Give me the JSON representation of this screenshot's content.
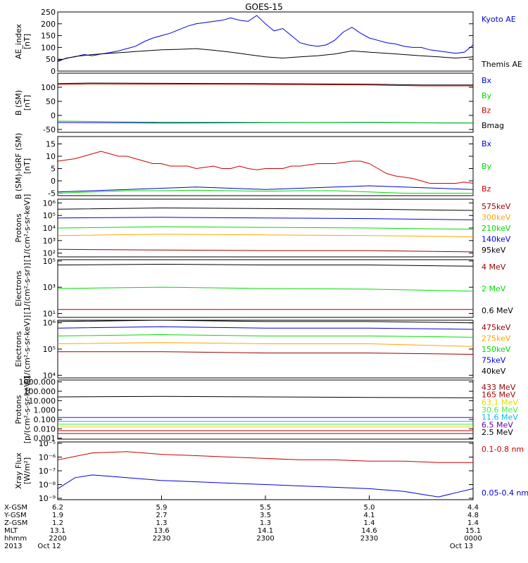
{
  "title": "GOES-15",
  "colors": {
    "black": "#000000",
    "blue": "#0000dd",
    "green": "#00dd00",
    "red": "#cc0000",
    "orange": "#ffa500",
    "yellow": "#dddd00",
    "lightgreen": "#44ee44",
    "cyan": "#00bbff",
    "darkred": "#990000",
    "purple": "#6600aa",
    "brown": "#aa0000"
  },
  "chart_data": [
    {
      "type": "line",
      "ylabel": [
        "AE_index",
        "[nT]"
      ],
      "ylim": [
        0,
        250
      ],
      "yscale": "linear",
      "yticks": [
        0,
        50,
        100,
        150,
        200,
        250
      ],
      "ytick_labels": [
        "0",
        "50",
        "100",
        "150",
        "200",
        "250"
      ],
      "series": [
        {
          "name": "Kyoto AE",
          "color": "blue",
          "x": [
            0,
            5,
            10,
            15,
            20,
            25,
            30,
            35,
            40,
            45,
            50,
            55,
            60,
            65,
            70,
            75,
            80,
            85,
            90,
            95,
            100,
            105,
            110,
            115,
            120,
            125,
            130,
            135,
            140,
            145,
            150,
            155,
            160,
            165,
            170,
            175,
            180,
            185,
            190,
            195,
            200,
            205,
            210,
            215,
            220,
            225,
            230,
            235,
            240
          ],
          "y": [
            40,
            55,
            60,
            70,
            65,
            72,
            78,
            85,
            95,
            105,
            125,
            140,
            150,
            160,
            175,
            190,
            200,
            205,
            210,
            215,
            225,
            215,
            210,
            235,
            200,
            170,
            180,
            150,
            120,
            110,
            105,
            110,
            130,
            165,
            185,
            160,
            140,
            130,
            120,
            115,
            105,
            100,
            100,
            90,
            85,
            80,
            75,
            80,
            110
          ]
        },
        {
          "name": "Themis AE",
          "color": "black",
          "x": [
            0,
            10,
            20,
            30,
            40,
            50,
            60,
            70,
            80,
            90,
            100,
            110,
            120,
            130,
            140,
            150,
            160,
            170,
            180,
            190,
            200,
            210,
            220,
            230,
            240
          ],
          "y": [
            45,
            62,
            70,
            75,
            80,
            85,
            90,
            92,
            95,
            88,
            80,
            70,
            60,
            55,
            60,
            65,
            72,
            85,
            80,
            75,
            70,
            65,
            60,
            55,
            60
          ]
        }
      ]
    },
    {
      "type": "line",
      "ylabel": [
        "B (SM)",
        "[nT]"
      ],
      "ylim": [
        -60,
        150
      ],
      "yscale": "linear",
      "yticks": [
        -50,
        0,
        50,
        100
      ],
      "ytick_labels": [
        "-50",
        "0",
        "50",
        "100"
      ],
      "series": [
        {
          "name": "Bx",
          "color": "blue",
          "x": [
            0,
            60,
            120,
            180,
            240
          ],
          "y": [
            -25,
            -27,
            -26,
            -25,
            -27
          ]
        },
        {
          "name": "By",
          "color": "green",
          "x": [
            0,
            30,
            60,
            120,
            180,
            240
          ],
          "y": [
            -20,
            -22,
            -24,
            -25,
            -26,
            -27
          ]
        },
        {
          "name": "Bz",
          "color": "red",
          "x": [
            0,
            20,
            60,
            120,
            180,
            210,
            240
          ],
          "y": [
            110,
            112,
            111,
            110,
            108,
            105,
            105
          ]
        },
        {
          "name": "Bmag",
          "color": "black",
          "x": [
            0,
            20,
            60,
            120,
            180,
            210,
            240
          ],
          "y": [
            113,
            115,
            114,
            113,
            111,
            108,
            108
          ]
        }
      ]
    },
    {
      "type": "line",
      "ylabel": [
        "B (SM)-IGRF (SM)",
        "[nT]"
      ],
      "ylim": [
        -6,
        18
      ],
      "yscale": "linear",
      "yticks": [
        -5,
        0,
        5,
        10,
        15
      ],
      "ytick_labels": [
        "-5",
        "0",
        "5",
        "10",
        "15"
      ],
      "series": [
        {
          "name": "Bx",
          "color": "blue",
          "x": [
            0,
            20,
            40,
            60,
            80,
            100,
            120,
            140,
            160,
            180,
            200,
            220,
            240
          ],
          "y": [
            -4.5,
            -4,
            -3.5,
            -3,
            -2.5,
            -3,
            -3.5,
            -3,
            -2.5,
            -2,
            -2.5,
            -3,
            -3.5
          ]
        },
        {
          "name": "By",
          "color": "green",
          "x": [
            0,
            20,
            40,
            60,
            80,
            100,
            120,
            140,
            160,
            180,
            200,
            220,
            240
          ],
          "y": [
            -5,
            -4.5,
            -4,
            -4,
            -3.8,
            -4,
            -4.2,
            -4,
            -4,
            -4.5,
            -5,
            -5,
            -5
          ]
        },
        {
          "name": "Bz",
          "color": "red",
          "x": [
            0,
            5,
            10,
            15,
            20,
            25,
            30,
            35,
            40,
            45,
            50,
            55,
            60,
            65,
            70,
            75,
            80,
            85,
            90,
            95,
            100,
            105,
            110,
            115,
            120,
            125,
            130,
            135,
            140,
            145,
            150,
            155,
            160,
            165,
            170,
            175,
            180,
            185,
            190,
            195,
            200,
            205,
            210,
            215,
            220,
            225,
            230,
            235,
            240
          ],
          "y": [
            8,
            8.5,
            9,
            10,
            11,
            12,
            11,
            10,
            10,
            9,
            8,
            7,
            7,
            6,
            6,
            6,
            5,
            5.5,
            6,
            5,
            5,
            6,
            5,
            4.5,
            5,
            5,
            5,
            6,
            6,
            6.5,
            7,
            7,
            7,
            7.5,
            8,
            8,
            7,
            5,
            3,
            2,
            1.5,
            1,
            0,
            -1,
            -1,
            -1,
            -1,
            -0.5,
            -1
          ]
        }
      ]
    },
    {
      "type": "line",
      "ylabel": [
        "Protons",
        "[1/(cm²-s-sr-keV)]"
      ],
      "ylim_log": [
        1.7,
        6.3
      ],
      "yscale": "log",
      "yticks_log": [
        2,
        3,
        4,
        5,
        6
      ],
      "ytick_labels": [
        "10²",
        "10³",
        "10⁴",
        "10⁵",
        "10⁶"
      ],
      "series": [
        {
          "name": "575keV",
          "color": "darkred",
          "x": [
            0,
            60,
            120,
            180,
            240
          ],
          "log_y": [
            2.3,
            2.25,
            2.2,
            2.2,
            2.1
          ]
        },
        {
          "name": "300keV",
          "color": "orange",
          "x": [
            0,
            60,
            120,
            180,
            240
          ],
          "log_y": [
            3.4,
            3.5,
            3.45,
            3.4,
            3.3
          ]
        },
        {
          "name": "210keV",
          "color": "green",
          "x": [
            0,
            60,
            120,
            180,
            240
          ],
          "log_y": [
            4.0,
            4.1,
            4.05,
            4.0,
            3.9
          ]
        },
        {
          "name": "140keV",
          "color": "blue",
          "x": [
            0,
            60,
            120,
            180,
            240
          ],
          "log_y": [
            4.8,
            4.85,
            4.8,
            4.75,
            4.65
          ]
        },
        {
          "name": "95keV",
          "color": "black",
          "x": [
            0,
            60,
            120,
            180,
            240
          ],
          "log_y": [
            5.5,
            5.6,
            5.55,
            5.5,
            5.4
          ]
        }
      ]
    },
    {
      "type": "line",
      "ylabel": [
        "Electrons",
        "[1/(cm²-s-sr)]"
      ],
      "ylim_log": [
        0.7,
        5.1
      ],
      "yscale": "log",
      "yticks_log": [
        1,
        3,
        5
      ],
      "ytick_labels": [
        "10¹",
        "10³",
        "10⁵"
      ],
      "series": [
        {
          "name": "4 MeV",
          "color": "darkred",
          "x": [
            0,
            60,
            120,
            180,
            240
          ],
          "log_y": [
            1.3,
            1.3,
            1.3,
            1.3,
            1.3
          ]
        },
        {
          "name": "2 MeV",
          "color": "green",
          "x": [
            0,
            60,
            120,
            180,
            240
          ],
          "log_y": [
            2.9,
            3.0,
            2.9,
            2.85,
            2.7
          ]
        },
        {
          "name": "0.6 MeV",
          "color": "black",
          "x": [
            0,
            60,
            120,
            180,
            240
          ],
          "log_y": [
            4.7,
            4.75,
            4.7,
            4.7,
            4.6
          ]
        }
      ]
    },
    {
      "type": "line",
      "ylabel": [
        "Electrons",
        "[1/(cm²-s-sr-keV)]"
      ],
      "ylim_log": [
        3.9,
        6.1
      ],
      "yscale": "log",
      "yticks_log": [
        4,
        5,
        6
      ],
      "ytick_labels": [
        "10⁴",
        "10⁵",
        "10⁶"
      ],
      "series": [
        {
          "name": "475keV",
          "color": "darkred",
          "x": [
            0,
            60,
            120,
            180,
            240
          ],
          "log_y": [
            4.9,
            4.9,
            4.85,
            4.85,
            4.8
          ]
        },
        {
          "name": "275keV",
          "color": "orange",
          "x": [
            0,
            60,
            120,
            180,
            240
          ],
          "log_y": [
            5.2,
            5.25,
            5.2,
            5.2,
            5.1
          ]
        },
        {
          "name": "150keV",
          "color": "green",
          "x": [
            0,
            60,
            120,
            180,
            240
          ],
          "log_y": [
            5.5,
            5.55,
            5.5,
            5.5,
            5.45
          ]
        },
        {
          "name": "75keV",
          "color": "blue",
          "x": [
            0,
            60,
            120,
            180,
            240
          ],
          "log_y": [
            5.8,
            5.85,
            5.8,
            5.8,
            5.75
          ]
        },
        {
          "name": "40keV",
          "color": "black",
          "x": [
            0,
            60,
            120,
            180,
            240
          ],
          "log_y": [
            6.05,
            6.1,
            6.05,
            6.05,
            6.0
          ]
        }
      ]
    },
    {
      "type": "line",
      "ylabel": [
        "Protons",
        "[p/(cm²-s-sr-keV)]"
      ],
      "ylim_log": [
        -3.1,
        3.2
      ],
      "yscale": "log",
      "yticks_log": [
        -3,
        -2,
        -1,
        0,
        1,
        2,
        3
      ],
      "ytick_labels": [
        "0.001",
        "0.010",
        "0.100",
        "1.000",
        "10.000",
        "100.000",
        "1000.000"
      ],
      "series": [
        {
          "name": "433 MeV",
          "color": "darkred",
          "x": [
            0,
            60,
            120,
            180,
            240
          ],
          "log_y": [
            -2.5,
            -2.5,
            -2.5,
            -2.5,
            -2.5
          ]
        },
        {
          "name": "165 MeV",
          "color": "brown",
          "x": [
            0,
            60,
            120,
            180,
            240
          ],
          "log_y": [
            -2.2,
            -2.2,
            -2.2,
            -2.2,
            -2.2
          ]
        },
        {
          "name": "63.1 MeV",
          "color": "yellow",
          "x": [
            0,
            60,
            120,
            180,
            240
          ],
          "log_y": [
            -1.8,
            -1.8,
            -1.8,
            -1.8,
            -1.8
          ]
        },
        {
          "name": "30.6 MeV",
          "color": "lightgreen",
          "x": [
            0,
            60,
            120,
            180,
            240
          ],
          "log_y": [
            -1.5,
            -1.5,
            -1.5,
            -1.5,
            -1.5
          ]
        },
        {
          "name": "11.6 MeV",
          "color": "cyan",
          "x": [
            0,
            60,
            120,
            180,
            240
          ],
          "log_y": [
            -1.2,
            -1.2,
            -1.2,
            -1.2,
            -1.2
          ]
        },
        {
          "name": "6.5 MeV",
          "color": "purple",
          "x": [
            0,
            60,
            120,
            180,
            240
          ],
          "log_y": [
            -0.8,
            -0.8,
            -0.8,
            -0.8,
            -0.8
          ]
        },
        {
          "name": "2.5 MeV",
          "color": "black",
          "x": [
            0,
            60,
            120,
            180,
            240
          ],
          "log_y": [
            1.4,
            1.45,
            1.4,
            1.35,
            1.3
          ]
        }
      ]
    },
    {
      "type": "line",
      "ylabel": [
        "Xray Flux",
        "[W/m²]"
      ],
      "ylim_log": [
        -9.1,
        -4.9
      ],
      "yscale": "log",
      "yticks_log": [
        -9,
        -8,
        -7,
        -6,
        -5
      ],
      "ytick_labels": [
        "10⁻⁹",
        "10⁻⁸",
        "10⁻⁷",
        "10⁻⁶",
        "10⁻⁵"
      ],
      "series": [
        {
          "name": "0.1-0.8 nm",
          "color": "red",
          "x": [
            0,
            20,
            40,
            60,
            80,
            100,
            120,
            140,
            160,
            180,
            200,
            220,
            240
          ],
          "log_y": [
            -6.2,
            -5.7,
            -5.6,
            -5.8,
            -5.9,
            -6.0,
            -6.1,
            -6.2,
            -6.2,
            -6.3,
            -6.3,
            -6.4,
            -6.4
          ]
        },
        {
          "name": "0.05-0.4 nm",
          "color": "blue",
          "x": [
            0,
            10,
            20,
            30,
            40,
            60,
            80,
            100,
            120,
            140,
            160,
            180,
            200,
            210,
            220,
            230,
            240
          ],
          "log_y": [
            -8.3,
            -7.5,
            -7.3,
            -7.4,
            -7.5,
            -7.7,
            -7.8,
            -7.9,
            -8.0,
            -8.1,
            -8.2,
            -8.3,
            -8.5,
            -8.7,
            -8.9,
            -8.6,
            -8.3
          ]
        }
      ]
    }
  ],
  "x_axis": {
    "xlim": [
      0,
      240
    ],
    "tick_minutes": [
      0,
      60,
      120,
      180,
      240
    ],
    "row_labels": [
      "X-GSM",
      "Y-GSM",
      "Z-GSM",
      "MLT",
      "hhmm",
      "2013"
    ],
    "rows": [
      [
        "6.2",
        "5.9",
        "5.5",
        "5.0",
        "4.4"
      ],
      [
        "1.9",
        "2.7",
        "3.5",
        "4.1",
        "4.8"
      ],
      [
        "1.2",
        "1.3",
        "1.3",
        "1.4",
        "1.4"
      ],
      [
        "13.1",
        "13.6",
        "14.1",
        "14.6",
        "15.1"
      ],
      [
        "2200",
        "2230",
        "2300",
        "2330",
        "0000"
      ],
      [
        "Oct 12",
        "",
        "",
        "",
        "Oct 13"
      ]
    ]
  }
}
